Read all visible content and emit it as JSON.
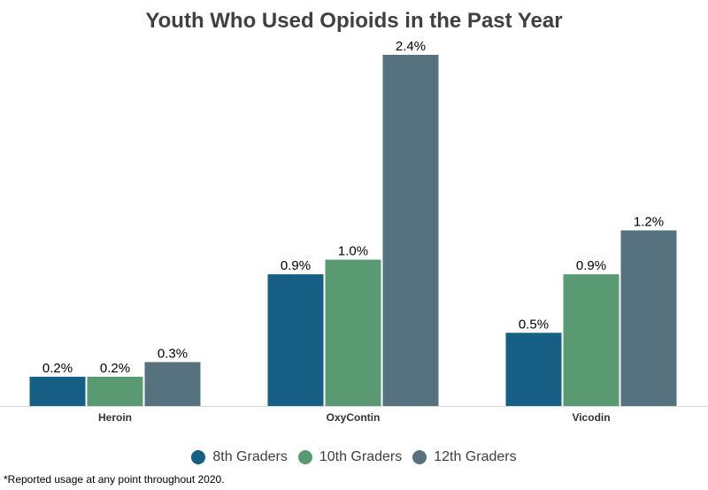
{
  "chart_data": {
    "type": "bar",
    "title": "Youth Who Used Opioids in the Past Year",
    "categories": [
      "Heroin",
      "OxyContin",
      "Vicodin"
    ],
    "series": [
      {
        "name": "8th Graders",
        "color": "#175E84",
        "values": [
          0.2,
          0.9,
          0.5
        ],
        "labels": [
          "0.2%",
          "0.9%",
          "0.5%"
        ]
      },
      {
        "name": "10th Graders",
        "color": "#5A9A72",
        "values": [
          0.2,
          1.0,
          0.9
        ],
        "labels": [
          "0.2%",
          "1.0%",
          "0.9%"
        ]
      },
      {
        "name": "12th Graders",
        "color": "#57727F",
        "values": [
          0.3,
          2.4,
          1.2
        ],
        "labels": [
          "0.3%",
          "2.4%",
          "1.2%"
        ]
      }
    ],
    "xlabel": "",
    "ylabel": "",
    "ylim": [
      0,
      2.4
    ],
    "grid": false,
    "legend_position": "bottom"
  },
  "footnote": "*Reported usage at any point throughout 2020."
}
